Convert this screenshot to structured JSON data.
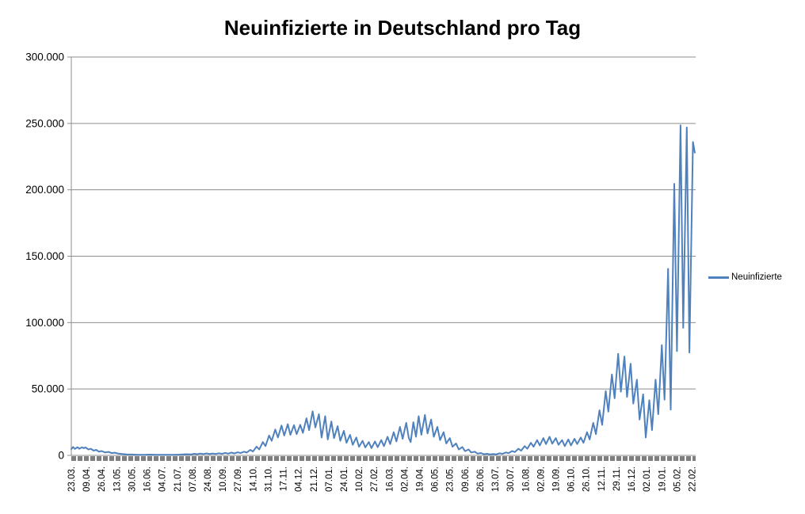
{
  "chart_data": {
    "type": "line",
    "title": "Neuinfizierte in Deutschland pro Tag",
    "legend_position": "right",
    "grid": true,
    "colors": {
      "line": "#4F81BD",
      "gridline": "#8C8C8C",
      "axis": "#8C8C8C",
      "tick_band": "#7F7F7F",
      "text": "#000000"
    },
    "y_axis": {
      "range": [
        0,
        300000
      ],
      "ticks": [
        {
          "label": "300.000",
          "value": 300000
        },
        {
          "label": "250.000",
          "value": 250000
        },
        {
          "label": "200.000",
          "value": 200000
        },
        {
          "label": "150.000",
          "value": 150000
        },
        {
          "label": "100.000",
          "value": 100000
        },
        {
          "label": "50.000",
          "value": 50000
        },
        {
          "label": "0",
          "value": 0
        }
      ]
    },
    "x_axis": {
      "total_days": 701,
      "label_interval_days": 17,
      "tick_labels": [
        "23.03.",
        "09.04.",
        "26.04.",
        "13.05.",
        "30.05.",
        "16.06.",
        "04.07.",
        "21.07.",
        "07.08.",
        "24.08.",
        "10.09.",
        "27.09.",
        "14.10.",
        "31.10.",
        "17.11.",
        "04.12.",
        "21.12.",
        "07.01.",
        "24.01.",
        "10.02.",
        "27.02.",
        "16.03.",
        "02.04.",
        "19.04.",
        "06.05.",
        "23.05.",
        "09.06.",
        "26.06.",
        "13.07.",
        "30.07.",
        "16.08.",
        "02.09.",
        "19.09.",
        "06.10.",
        "26.10.",
        "12.11.",
        "29.11.",
        "16.12.",
        "02.01.",
        "19.01.",
        "05.02.",
        "22.02."
      ]
    },
    "series": [
      {
        "name": "Neuinfizierte",
        "color": "#4F81BD",
        "points": [
          [
            0,
            4800
          ],
          [
            2,
            6300
          ],
          [
            4,
            4900
          ],
          [
            7,
            6200
          ],
          [
            9,
            5000
          ],
          [
            12,
            6100
          ],
          [
            14,
            5400
          ],
          [
            16,
            6000
          ],
          [
            19,
            4500
          ],
          [
            22,
            5000
          ],
          [
            25,
            3600
          ],
          [
            28,
            4200
          ],
          [
            31,
            2800
          ],
          [
            34,
            3300
          ],
          [
            38,
            2200
          ],
          [
            42,
            2600
          ],
          [
            45,
            1700
          ],
          [
            49,
            2000
          ],
          [
            53,
            1300
          ],
          [
            57,
            1000
          ],
          [
            62,
            800
          ],
          [
            68,
            650
          ],
          [
            75,
            500
          ],
          [
            82,
            450
          ],
          [
            88,
            600
          ],
          [
            95,
            500
          ],
          [
            102,
            400
          ],
          [
            108,
            450
          ],
          [
            115,
            400
          ],
          [
            122,
            600
          ],
          [
            129,
            900
          ],
          [
            134,
            700
          ],
          [
            138,
            1200
          ],
          [
            141,
            900
          ],
          [
            145,
            1400
          ],
          [
            148,
            1000
          ],
          [
            152,
            1500
          ],
          [
            155,
            1100
          ],
          [
            159,
            1450
          ],
          [
            162,
            1050
          ],
          [
            166,
            1600
          ],
          [
            169,
            1200
          ],
          [
            173,
            1900
          ],
          [
            176,
            1300
          ],
          [
            180,
            2100
          ],
          [
            183,
            1500
          ],
          [
            187,
            2300
          ],
          [
            190,
            1700
          ],
          [
            194,
            2800
          ],
          [
            197,
            2100
          ],
          [
            201,
            4200
          ],
          [
            204,
            2900
          ],
          [
            208,
            6600
          ],
          [
            211,
            4500
          ],
          [
            215,
            10000
          ],
          [
            218,
            7000
          ],
          [
            222,
            15000
          ],
          [
            225,
            11000
          ],
          [
            229,
            19500
          ],
          [
            232,
            13500
          ],
          [
            236,
            22500
          ],
          [
            239,
            15000
          ],
          [
            243,
            23500
          ],
          [
            246,
            15500
          ],
          [
            250,
            22800
          ],
          [
            253,
            16000
          ],
          [
            257,
            23000
          ],
          [
            260,
            17000
          ],
          [
            264,
            28000
          ],
          [
            267,
            19000
          ],
          [
            271,
            33200
          ],
          [
            274,
            21000
          ],
          [
            278,
            31000
          ],
          [
            281,
            13500
          ],
          [
            285,
            29500
          ],
          [
            288,
            12000
          ],
          [
            292,
            25500
          ],
          [
            295,
            13000
          ],
          [
            299,
            22000
          ],
          [
            302,
            11000
          ],
          [
            306,
            18500
          ],
          [
            309,
            9500
          ],
          [
            313,
            15500
          ],
          [
            316,
            8000
          ],
          [
            320,
            13500
          ],
          [
            323,
            6500
          ],
          [
            327,
            11000
          ],
          [
            330,
            6000
          ],
          [
            334,
            10000
          ],
          [
            337,
            5500
          ],
          [
            341,
            10500
          ],
          [
            344,
            6200
          ],
          [
            348,
            11500
          ],
          [
            351,
            7000
          ],
          [
            355,
            14000
          ],
          [
            358,
            8500
          ],
          [
            362,
            17500
          ],
          [
            365,
            10500
          ],
          [
            369,
            21500
          ],
          [
            372,
            12500
          ],
          [
            376,
            24500
          ],
          [
            379,
            13000
          ],
          [
            381,
            10000
          ],
          [
            384,
            25000
          ],
          [
            387,
            14000
          ],
          [
            390,
            29500
          ],
          [
            393,
            15500
          ],
          [
            397,
            30500
          ],
          [
            400,
            16500
          ],
          [
            404,
            27000
          ],
          [
            407,
            14000
          ],
          [
            411,
            21500
          ],
          [
            414,
            11500
          ],
          [
            418,
            17500
          ],
          [
            421,
            9000
          ],
          [
            425,
            13000
          ],
          [
            428,
            6500
          ],
          [
            432,
            9000
          ],
          [
            435,
            4500
          ],
          [
            439,
            6300
          ],
          [
            442,
            3200
          ],
          [
            446,
            4500
          ],
          [
            449,
            2200
          ],
          [
            453,
            2800
          ],
          [
            456,
            1400
          ],
          [
            460,
            1800
          ],
          [
            463,
            900
          ],
          [
            467,
            1200
          ],
          [
            470,
            700
          ],
          [
            474,
            1000
          ],
          [
            477,
            800
          ],
          [
            481,
            1600
          ],
          [
            484,
            1200
          ],
          [
            488,
            2200
          ],
          [
            491,
            1700
          ],
          [
            495,
            3300
          ],
          [
            498,
            2500
          ],
          [
            502,
            5000
          ],
          [
            505,
            3500
          ],
          [
            509,
            7000
          ],
          [
            512,
            5000
          ],
          [
            516,
            9500
          ],
          [
            519,
            6500
          ],
          [
            523,
            11500
          ],
          [
            526,
            7500
          ],
          [
            530,
            13000
          ],
          [
            533,
            8500
          ],
          [
            537,
            14000
          ],
          [
            540,
            8800
          ],
          [
            544,
            13000
          ],
          [
            547,
            8000
          ],
          [
            551,
            11500
          ],
          [
            554,
            7000
          ],
          [
            558,
            12000
          ],
          [
            561,
            7500
          ],
          [
            565,
            12500
          ],
          [
            568,
            8500
          ],
          [
            572,
            13500
          ],
          [
            575,
            9500
          ],
          [
            579,
            17500
          ],
          [
            582,
            12000
          ],
          [
            586,
            24500
          ],
          [
            589,
            16000
          ],
          [
            593,
            34000
          ],
          [
            596,
            23000
          ],
          [
            600,
            48500
          ],
          [
            603,
            33000
          ],
          [
            607,
            61000
          ],
          [
            610,
            43000
          ],
          [
            614,
            76500
          ],
          [
            617,
            48000
          ],
          [
            621,
            74500
          ],
          [
            624,
            44000
          ],
          [
            628,
            69000
          ],
          [
            631,
            39000
          ],
          [
            635,
            57000
          ],
          [
            638,
            27000
          ],
          [
            642,
            46000
          ],
          [
            645,
            13500
          ],
          [
            649,
            41500
          ],
          [
            652,
            19000
          ],
          [
            656,
            57000
          ],
          [
            659,
            31000
          ],
          [
            663,
            83000
          ],
          [
            666,
            42000
          ],
          [
            670,
            140500
          ],
          [
            673,
            34500
          ],
          [
            677,
            204500
          ],
          [
            680,
            78500
          ],
          [
            684,
            248500
          ],
          [
            687,
            96000
          ],
          [
            691,
            247000
          ],
          [
            694,
            77500
          ],
          [
            698,
            236000
          ],
          [
            700,
            228000
          ]
        ]
      }
    ]
  }
}
